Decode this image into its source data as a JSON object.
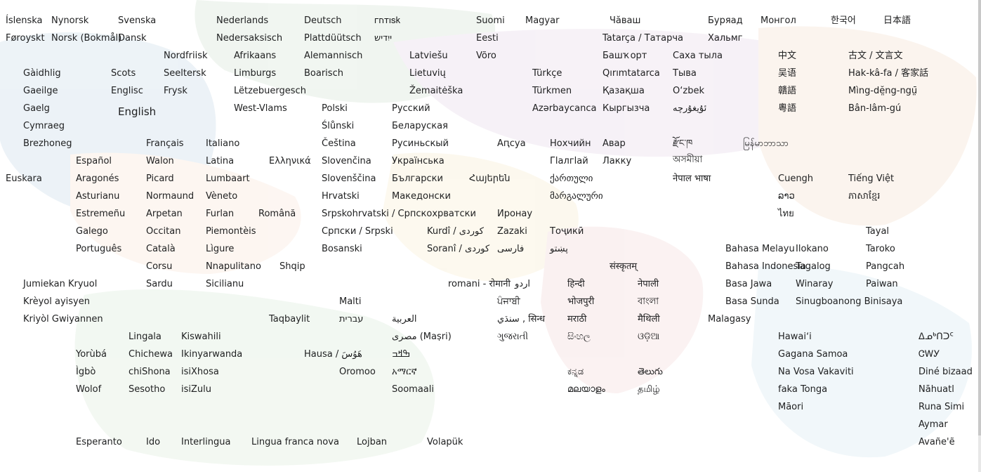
{
  "languages": [
    "Íslenska",
    "Nynorsk",
    "Svenska",
    "Nederlands",
    "Deutsch",
    "𐌲𐌿𐍄𐌹𐍃𐌺",
    "Suomi",
    "Magyar",
    "Чӑваш",
    "Буряад",
    "Монгол",
    "한국어",
    "日本語",
    "Føroyskt",
    "Norsk (Bokmål)",
    "Dansk",
    "Nedersaksisch",
    "Plattdüütsch",
    "ייִדיש",
    "Eesti",
    "Tatarça / Татарча",
    "Хальмг",
    "Nordfriisk",
    "Afrikaans",
    "Alemannisch",
    "Latviešu",
    "Võro",
    "Башҡорт",
    "Саха тыла",
    "中文",
    "古文 / 文言文",
    "Gàidhlig",
    "Scots",
    "Seeltersk",
    "Limburgs",
    "Boarisch",
    "Lietuvių",
    "Türkçe",
    "Qırımtatarca",
    "Тыва",
    "吴语",
    "Hak-kâ-fa / 客家話",
    "Gaeilge",
    "Englisc",
    "Frysk",
    "Lëtzebuergesch",
    "Žemaitėška",
    "Türkmen",
    "Қазақша",
    "O‘zbek",
    "贛語",
    "Mìng-dĕ̤ng-ngṳ̄",
    "Gaelg",
    "English",
    "West-Vlams",
    "Polski",
    "Русский",
    "Azərbaycanca",
    "Кыргызча",
    "ئۇيغۇرچە",
    "粵語",
    "Bân-lâm-gú",
    "Cymraeg",
    "Ślůnski",
    "Беларуская",
    "Brezhoneg",
    "Français",
    "Italiano",
    "Čeština",
    "Русиньскый",
    "Аԥсуа",
    "Нохчийн",
    "Авар",
    "རྫོང་ཁ",
    "မြန်မာဘာသာ",
    "Español",
    "Walon",
    "Latina",
    "Ελληνικά",
    "Slovenčina",
    "Українська",
    "Гӏалгӏай",
    "Лакку",
    "অসমীয়া",
    "Euskara",
    "Aragonés",
    "Picard",
    "Lumbaart",
    "Slovenščina",
    "Български",
    "Հայերեն",
    "ქართული",
    "नेपाल भाषा",
    "Cuengh",
    "Tiếng Việt",
    "Asturianu",
    "Normaund",
    "Vèneto",
    "Hrvatski",
    "Македонски",
    "მარგალური",
    "ລາວ",
    "ភាសាខ្មែរ",
    "Estremeñu",
    "Arpetan",
    "Furlan",
    "Română",
    "Srpskohrvatski / Српскохрватски",
    "Иронау",
    "ไทย",
    "Galego",
    "Occitan",
    "Piemontèis",
    "Српски / Srpski",
    "Kurdî / كوردی",
    "Zazaki",
    "Тоҷикӣ",
    "Tayal",
    "Português",
    "Català",
    "Lìgure",
    "Bosanski",
    "Soranî / کوردی",
    "فارسی",
    "پښتو",
    "Bahasa Melayu",
    "Ilokano",
    "Taroko",
    "Corsu",
    "Nnapulitano",
    "Shqip",
    "संस्कृतम्",
    "Bahasa Indonesia",
    "Tagalog",
    "Pangcah",
    "Jumiekan Kryuol",
    "Sardu",
    "Sicilianu",
    "romani - रोमानी",
    "اردو",
    "हिन्दी",
    "नेपाली",
    "Basa Jawa",
    "Winaray",
    "Paiwan",
    "Krèyol ayisyen",
    "Malti",
    "ਪੰਜਾਬੀ",
    "भोजपुरी",
    "বাংলা",
    "Basa Sunda",
    "Sinugboanong Binisaya",
    "Kriyòl Gwiyannen",
    "Taqbaylit",
    "עברית",
    "العربية",
    "سنڌي , सिन्ध",
    "मराठी",
    "मैथिली",
    "Malagasy",
    "Lingala",
    "Kiswahili",
    "مصرى (Maṣri)",
    "ગુજરાતી",
    "සිංහල",
    "ଓଡ଼ିଆ",
    "Hawaiʻi",
    "ᐃᓄᒃᑎᑐᑦ",
    "Yorùbá",
    "Chichewa",
    "Ikinyarwanda",
    "Hausa / هَوُسَ",
    "ߒߞߏ",
    "Gagana Samoa",
    "ᏣᎳᎩ",
    "Ìgbò",
    "chiShona",
    "isiXhosa",
    "Oromoo",
    "አማርኛ",
    "ಕನ್ನಡ",
    "తెలుగు",
    "Na Vosa Vakaviti",
    "Diné bizaad",
    "Wolof",
    "Sesotho",
    "isiZulu",
    "Soomaali",
    "മലയാളം",
    "தமிழ்",
    "faka Tonga",
    "Nāhuatl",
    "Māori",
    "Runa Simi",
    "Aymar",
    "Esperanto",
    "Ido",
    "Interlingua",
    "Lingua franca nova",
    "Lojban",
    "Volapük",
    "Avañe'ẽ"
  ]
}
